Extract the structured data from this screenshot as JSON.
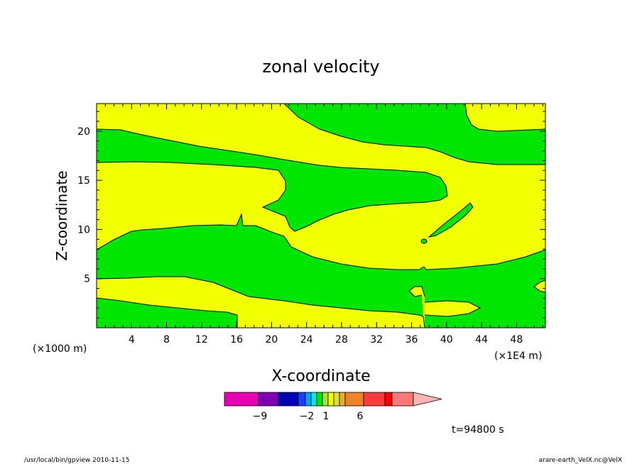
{
  "chart_data": {
    "type": "heatmap",
    "title": "zonal velocity",
    "xlabel": "X-coordinate",
    "ylabel": "Z-coordinate",
    "x_unit": "(×1E4 m)",
    "y_unit": "(×1000 m)",
    "x_ticks": [
      4,
      8,
      12,
      16,
      20,
      24,
      28,
      32,
      36,
      40,
      44,
      48
    ],
    "y_ticks": [
      5,
      10,
      15,
      20
    ],
    "xlim": [
      0,
      51.3
    ],
    "ylim": [
      0,
      22.8
    ],
    "fill_colors": {
      "positive": "#f2ff00",
      "negative": "#00e600"
    },
    "colorbar": {
      "colors": [
        "#e600b4",
        "#7d00b4",
        "#0000b4",
        "#1e3cff",
        "#00a0ff",
        "#00e6e6",
        "#00e600",
        "#a0e632",
        "#f2ff00",
        "#e6dc32",
        "#e6af2d",
        "#f08228",
        "#fa3c3c",
        "#ff0000",
        "#ff7878",
        "#ffb4b4"
      ],
      "labels": [
        "−9",
        "−2",
        "1",
        "6"
      ]
    },
    "annotation": "t=94800 s"
  },
  "footer": {
    "left": "/usr/local/bin/gpview   2010-11-15",
    "right": "arare-earth_VelX.nc@VelX"
  }
}
